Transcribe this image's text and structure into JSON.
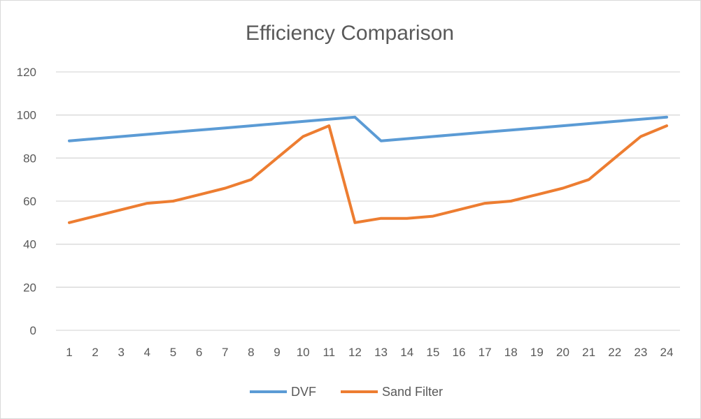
{
  "chart_data": {
    "type": "line",
    "title": "Efficiency Comparison",
    "xlabel": "",
    "ylabel": "",
    "ylim": [
      0,
      120
    ],
    "yticks": [
      "0",
      "20",
      "40",
      "60",
      "80",
      "100",
      "120"
    ],
    "categories": [
      "1",
      "2",
      "3",
      "4",
      "5",
      "6",
      "7",
      "8",
      "9",
      "10",
      "11",
      "12",
      "13",
      "14",
      "15",
      "16",
      "17",
      "18",
      "19",
      "20",
      "21",
      "22",
      "23",
      "24"
    ],
    "grid": true,
    "legend_position": "bottom",
    "series": [
      {
        "name": "DVF",
        "color": "#5B9BD5",
        "values": [
          88,
          89,
          90,
          91,
          92,
          93,
          94,
          95,
          96,
          97,
          98,
          99,
          88,
          89,
          90,
          91,
          92,
          93,
          94,
          95,
          96,
          97,
          98,
          99
        ]
      },
      {
        "name": "Sand Filter",
        "color": "#ED7D31",
        "values": [
          50,
          53,
          56,
          59,
          60,
          63,
          66,
          70,
          80,
          90,
          95,
          50,
          52,
          52,
          53,
          56,
          59,
          60,
          63,
          66,
          70,
          80,
          90,
          95
        ]
      }
    ]
  }
}
